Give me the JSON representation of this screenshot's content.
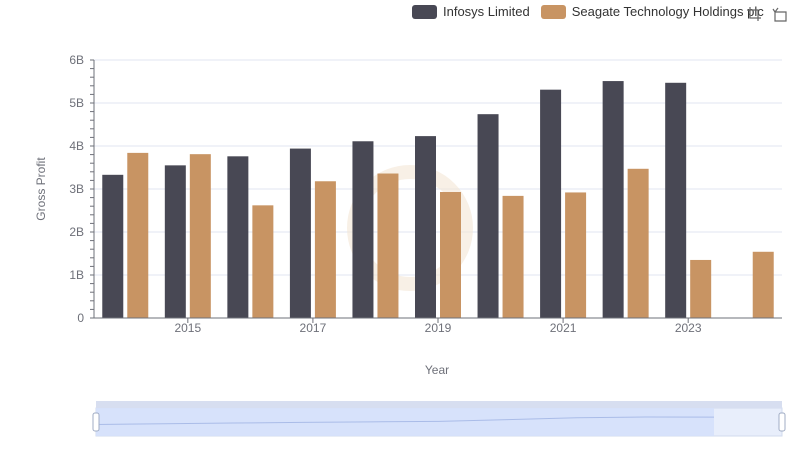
{
  "chart_data": {
    "type": "bar",
    "xlabel": "Year",
    "ylabel": "Gross Profit",
    "x_tick_labels": [
      "2015",
      "2017",
      "2019",
      "2021",
      "2023"
    ],
    "y_tick_labels": [
      "0",
      "1B",
      "2B",
      "3B",
      "4B",
      "5B",
      "6B"
    ],
    "ylim": [
      0,
      6000000000
    ],
    "categories": [
      2014,
      2015,
      2016,
      2017,
      2018,
      2019,
      2020,
      2021,
      2022,
      2023,
      2024
    ],
    "series": [
      {
        "name": "Infosys Limited",
        "color": "#484854",
        "values": [
          3330000000,
          3550000000,
          3760000000,
          3940000000,
          4110000000,
          4230000000,
          4740000000,
          5310000000,
          5510000000,
          5470000000,
          null
        ]
      },
      {
        "name": "Seagate Technology Holdings plc",
        "color": "#c89463",
        "values": [
          3840000000,
          3810000000,
          2620000000,
          3180000000,
          3360000000,
          2930000000,
          2840000000,
          2920000000,
          3470000000,
          1350000000,
          1540000000
        ]
      }
    ],
    "legend_position": "top-right",
    "grid": "horizontal",
    "data_zoom": "slider-bottom"
  },
  "toolbox": {
    "icons": [
      "zoom-icon",
      "restore-icon"
    ]
  }
}
